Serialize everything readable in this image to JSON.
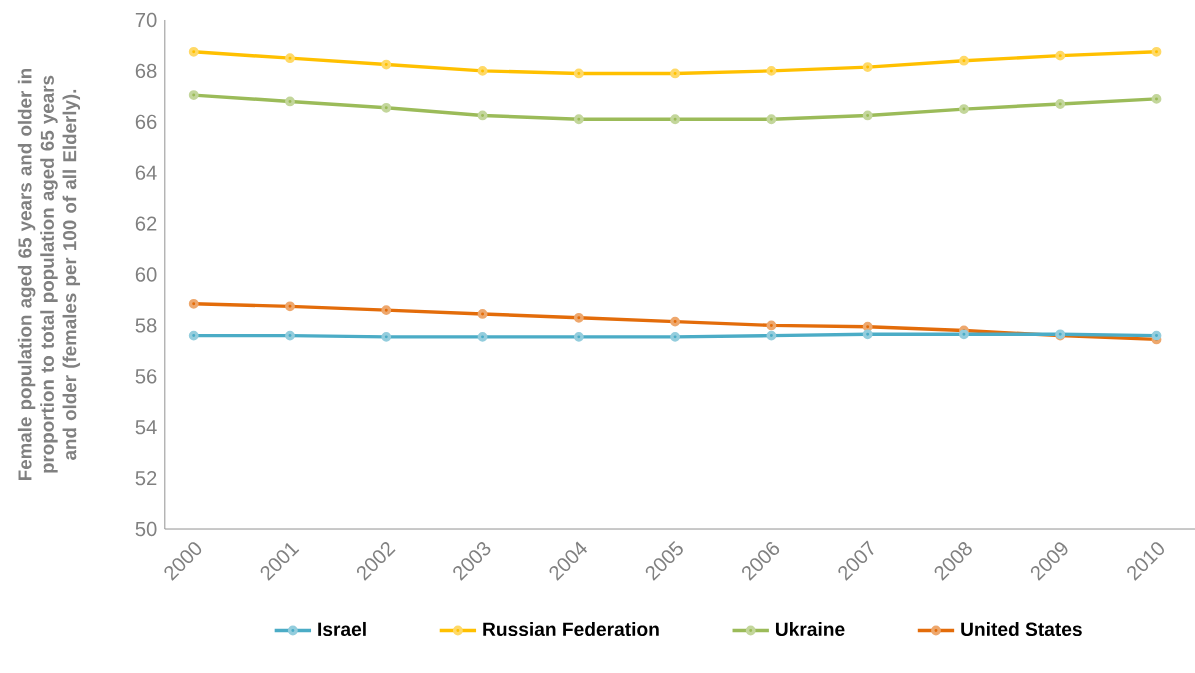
{
  "chart_data": {
    "type": "line",
    "ylabel": "Female population  aged 65 years and older in proportion to total population  aged 65 years and older (females per 100 of all Elderly).",
    "categories": [
      "2000",
      "2001",
      "2002",
      "2003",
      "2004",
      "2005",
      "2006",
      "2007",
      "2008",
      "2009",
      "2010"
    ],
    "ylim": [
      50,
      70
    ],
    "yticks": [
      50,
      52,
      54,
      56,
      58,
      60,
      62,
      64,
      66,
      68,
      70
    ],
    "grid": false,
    "legend": "bottom",
    "marker": "circle",
    "series": [
      {
        "name": "Israel",
        "color": "#4bacc6",
        "values": [
          57.6,
          57.6,
          57.55,
          57.55,
          57.55,
          57.55,
          57.6,
          57.65,
          57.65,
          57.65,
          57.6
        ]
      },
      {
        "name": "Russian Federation",
        "color": "#ffc000",
        "values": [
          68.75,
          68.5,
          68.25,
          68.0,
          67.9,
          67.9,
          68.0,
          68.15,
          68.4,
          68.6,
          68.75
        ]
      },
      {
        "name": "Ukraine",
        "color": "#9bbb59",
        "values": [
          67.05,
          66.8,
          66.55,
          66.25,
          66.1,
          66.1,
          66.1,
          66.25,
          66.5,
          66.7,
          66.9
        ]
      },
      {
        "name": "United States",
        "color": "#e36c0a",
        "values": [
          58.85,
          58.75,
          58.6,
          58.45,
          58.3,
          58.15,
          58.0,
          57.95,
          57.8,
          57.6,
          57.45
        ]
      }
    ]
  }
}
